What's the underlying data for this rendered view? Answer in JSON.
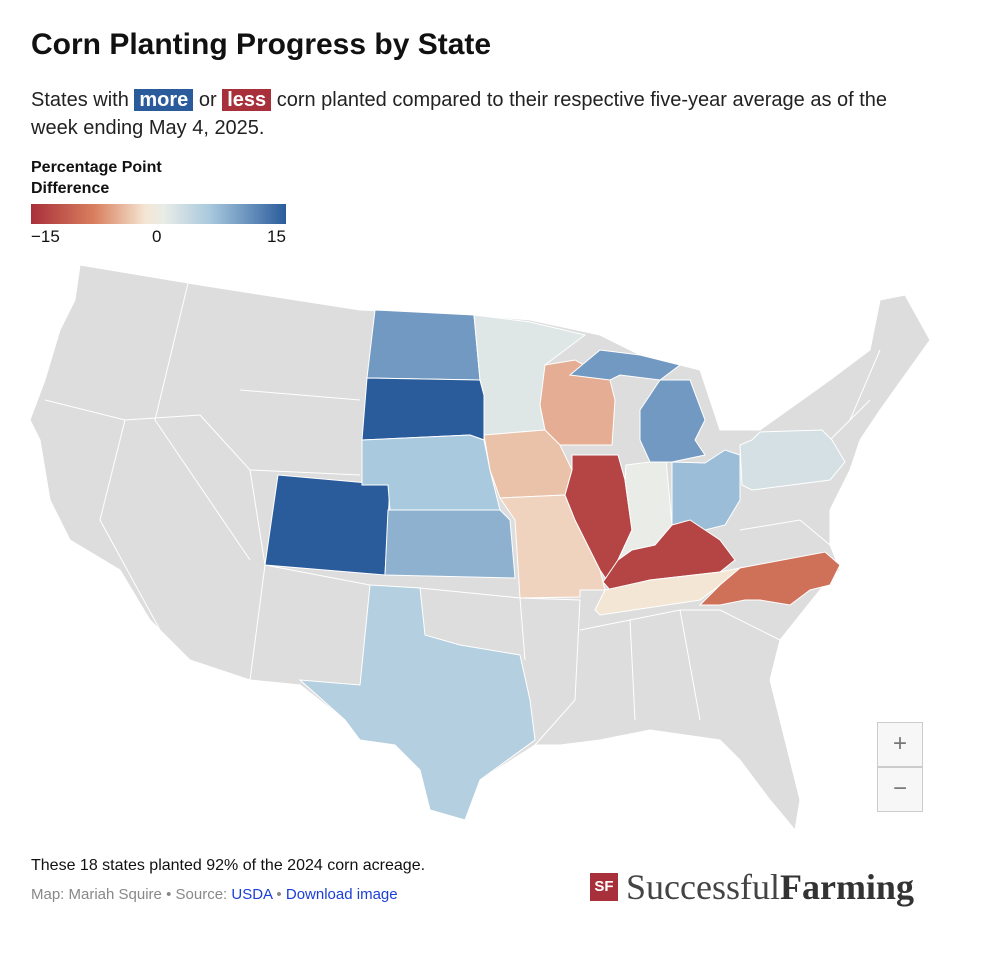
{
  "title": "Corn Planting Progress by State",
  "subtitle": {
    "pre": "States with",
    "more": "more",
    "or": "or",
    "less": "less",
    "post": "corn planted compared to their respective five-year average as of the week ending May 4, 2025."
  },
  "legend": {
    "title": "Percentage Point Difference",
    "min_label": "−15",
    "mid_label": "0",
    "max_label": "15",
    "range": [
      -15,
      15
    ]
  },
  "colors": {
    "more": "#2a5c9c",
    "less": "#a8303a",
    "nodata": "#dddddd"
  },
  "chart_data": {
    "type": "choropleth",
    "title": "Corn Planting Progress by State",
    "unit": "percentage points vs five-year average",
    "states": [
      {
        "state": "North Dakota",
        "value": 10
      },
      {
        "state": "South Dakota",
        "value": 15
      },
      {
        "state": "Colorado",
        "value": 15
      },
      {
        "state": "Nebraska",
        "value": 6
      },
      {
        "state": "Kansas",
        "value": 8
      },
      {
        "state": "Texas",
        "value": 5
      },
      {
        "state": "Minnesota",
        "value": 1
      },
      {
        "state": "Wisconsin",
        "value": -5
      },
      {
        "state": "Iowa",
        "value": -4
      },
      {
        "state": "Missouri",
        "value": -3
      },
      {
        "state": "Illinois",
        "value": -13
      },
      {
        "state": "Indiana",
        "value": 0
      },
      {
        "state": "Ohio",
        "value": 7
      },
      {
        "state": "Michigan",
        "value": 10
      },
      {
        "state": "Pennsylvania",
        "value": 2
      },
      {
        "state": "Kentucky",
        "value": -13
      },
      {
        "state": "Tennessee",
        "value": -2
      },
      {
        "state": "North Carolina",
        "value": -9
      }
    ]
  },
  "zoom": {
    "in": "+",
    "out": "−"
  },
  "footer": {
    "note": "These 18 states planted 92% of the 2024 corn acreage.",
    "map_credit": "Map: Mariah Squire",
    "sep": "•",
    "source_label": "Source:",
    "source_link": "USDA",
    "download": "Download image"
  },
  "logo": {
    "mark": "SF",
    "word1": "Successful",
    "word2": "Farming"
  }
}
